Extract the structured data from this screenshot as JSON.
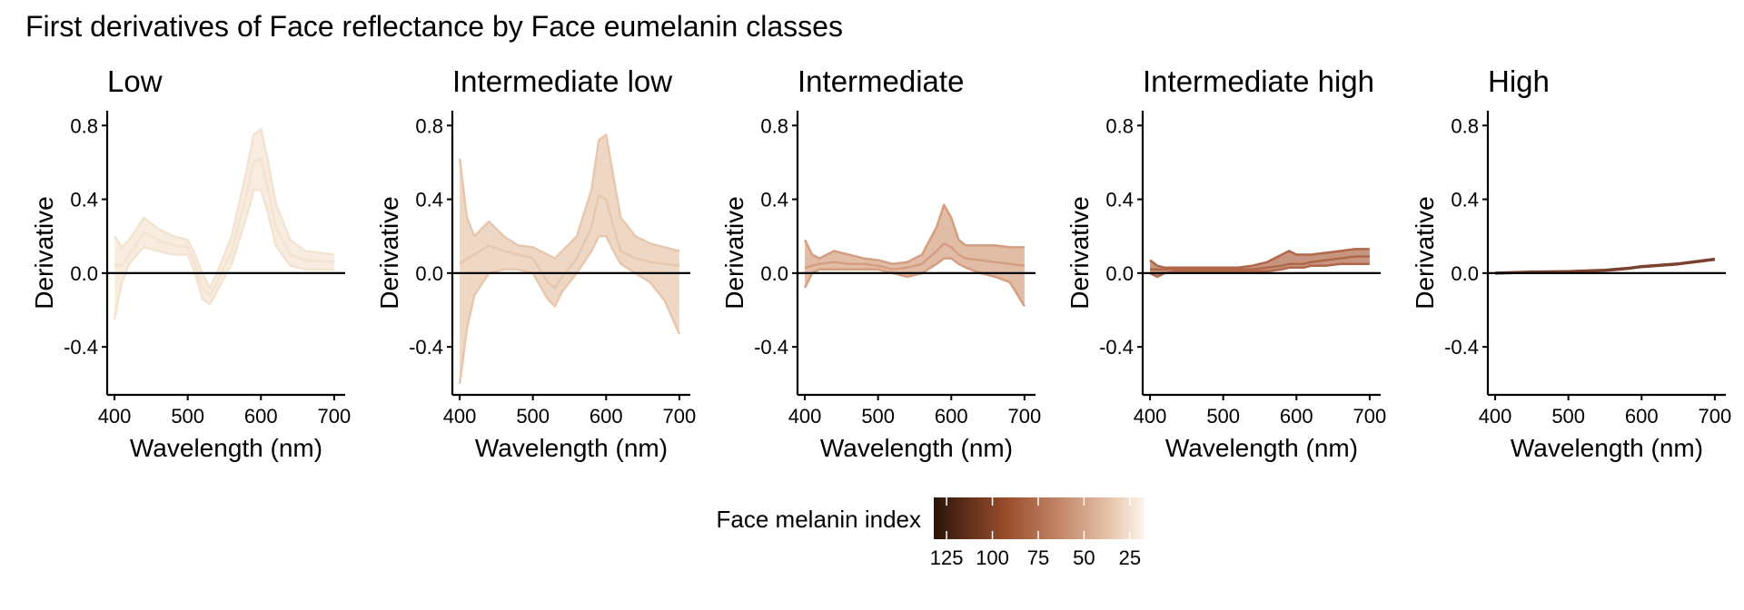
{
  "chart_data": {
    "type": "line",
    "title": "First derivatives of Face reflectance by Face eumelanin classes",
    "xlabel": "Wavelength (nm)",
    "ylabel": "Derivative",
    "xlim": [
      390,
      715
    ],
    "ylim": [
      -0.66,
      0.88
    ],
    "xticks": [
      400,
      500,
      600,
      700
    ],
    "yticks": [
      0.8,
      0.4,
      0.0,
      -0.4
    ],
    "ytick_labels": [
      "0.8",
      "0.4",
      "0.0",
      "-0.4"
    ],
    "hline": 0.0,
    "panels": [
      {
        "title": "Low",
        "color": "#f3e4d2",
        "series": [
          {
            "name": "upper",
            "x": [
              400,
              410,
              420,
              440,
              460,
              480,
              500,
              510,
              520,
              530,
              540,
              560,
              580,
              590,
              600,
              610,
              620,
              640,
              660,
              700
            ],
            "y": [
              0.2,
              0.14,
              0.18,
              0.3,
              0.24,
              0.2,
              0.18,
              0.1,
              0.0,
              -0.08,
              0.0,
              0.2,
              0.55,
              0.75,
              0.78,
              0.6,
              0.38,
              0.18,
              0.12,
              0.1
            ]
          },
          {
            "name": "mid",
            "x": [
              400,
              410,
              420,
              440,
              460,
              480,
              500,
              510,
              520,
              530,
              540,
              560,
              580,
              590,
              600,
              610,
              620,
              640,
              660,
              700
            ],
            "y": [
              0.05,
              0.04,
              0.1,
              0.22,
              0.18,
              0.15,
              0.14,
              0.05,
              -0.08,
              -0.12,
              -0.05,
              0.12,
              0.42,
              0.6,
              0.62,
              0.45,
              0.25,
              0.1,
              0.07,
              0.06
            ]
          },
          {
            "name": "lower",
            "x": [
              400,
              410,
              420,
              440,
              460,
              480,
              500,
              510,
              520,
              530,
              540,
              560,
              580,
              590,
              600,
              610,
              620,
              640,
              660,
              700
            ],
            "y": [
              -0.25,
              -0.05,
              0.05,
              0.14,
              0.12,
              0.1,
              0.1,
              0.0,
              -0.14,
              -0.17,
              -0.1,
              0.05,
              0.3,
              0.45,
              0.45,
              0.32,
              0.15,
              0.04,
              0.02,
              0.02
            ]
          }
        ]
      },
      {
        "title": "Intermediate low",
        "color": "#e7c7ad",
        "series": [
          {
            "name": "upper",
            "x": [
              400,
              410,
              420,
              440,
              460,
              480,
              500,
              520,
              530,
              540,
              560,
              580,
              590,
              600,
              610,
              620,
              640,
              660,
              680,
              700
            ],
            "y": [
              0.62,
              0.3,
              0.2,
              0.28,
              0.2,
              0.15,
              0.14,
              0.1,
              0.08,
              0.12,
              0.2,
              0.45,
              0.72,
              0.75,
              0.52,
              0.3,
              0.2,
              0.16,
              0.14,
              0.12
            ]
          },
          {
            "name": "mid",
            "x": [
              400,
              410,
              420,
              440,
              460,
              480,
              500,
              520,
              530,
              540,
              560,
              580,
              590,
              600,
              610,
              620,
              640,
              660,
              680,
              700
            ],
            "y": [
              0.05,
              0.08,
              0.1,
              0.15,
              0.12,
              0.1,
              0.08,
              -0.05,
              -0.08,
              -0.02,
              0.08,
              0.25,
              0.42,
              0.4,
              0.25,
              0.12,
              0.08,
              0.06,
              0.05,
              0.04
            ]
          },
          {
            "name": "lower",
            "x": [
              400,
              410,
              420,
              440,
              460,
              480,
              500,
              520,
              530,
              540,
              560,
              580,
              590,
              600,
              610,
              620,
              640,
              660,
              680,
              700
            ],
            "y": [
              -0.6,
              -0.3,
              -0.12,
              0.0,
              0.02,
              0.02,
              0.0,
              -0.14,
              -0.18,
              -0.1,
              0.0,
              0.12,
              0.2,
              0.2,
              0.12,
              0.05,
              0.0,
              -0.05,
              -0.15,
              -0.33
            ]
          }
        ]
      },
      {
        "title": "Intermediate",
        "color": "#d49f80",
        "series": [
          {
            "name": "upper",
            "x": [
              400,
              410,
              420,
              440,
              460,
              480,
              500,
              520,
              540,
              560,
              580,
              590,
              600,
              610,
              620,
              640,
              660,
              680,
              700
            ],
            "y": [
              0.18,
              0.1,
              0.08,
              0.12,
              0.1,
              0.08,
              0.07,
              0.05,
              0.06,
              0.1,
              0.25,
              0.37,
              0.3,
              0.18,
              0.15,
              0.15,
              0.15,
              0.14,
              0.14
            ]
          },
          {
            "name": "mid",
            "x": [
              400,
              410,
              420,
              440,
              460,
              480,
              500,
              520,
              540,
              560,
              580,
              590,
              600,
              610,
              620,
              640,
              660,
              680,
              700
            ],
            "y": [
              0.03,
              0.04,
              0.05,
              0.06,
              0.05,
              0.05,
              0.04,
              0.02,
              0.03,
              0.05,
              0.12,
              0.16,
              0.14,
              0.1,
              0.08,
              0.07,
              0.06,
              0.05,
              0.04
            ]
          },
          {
            "name": "lower",
            "x": [
              400,
              410,
              420,
              440,
              460,
              480,
              500,
              520,
              540,
              560,
              580,
              590,
              600,
              610,
              620,
              640,
              660,
              680,
              700
            ],
            "y": [
              -0.08,
              0.0,
              0.02,
              0.02,
              0.02,
              0.02,
              0.02,
              0.0,
              -0.02,
              0.0,
              0.05,
              0.08,
              0.08,
              0.05,
              0.03,
              0.0,
              -0.02,
              -0.05,
              -0.18
            ]
          }
        ]
      },
      {
        "title": "Intermediate high",
        "color": "#b0684a",
        "series": [
          {
            "name": "upper",
            "x": [
              400,
              410,
              420,
              440,
              460,
              480,
              500,
              520,
              540,
              560,
              580,
              590,
              600,
              610,
              620,
              640,
              660,
              680,
              700
            ],
            "y": [
              0.07,
              0.04,
              0.03,
              0.03,
              0.03,
              0.03,
              0.03,
              0.03,
              0.04,
              0.06,
              0.1,
              0.12,
              0.1,
              0.1,
              0.1,
              0.11,
              0.12,
              0.13,
              0.13
            ]
          },
          {
            "name": "mid",
            "x": [
              400,
              410,
              420,
              440,
              460,
              480,
              500,
              520,
              540,
              560,
              580,
              590,
              600,
              610,
              620,
              640,
              660,
              680,
              700
            ],
            "y": [
              0.02,
              0.02,
              0.02,
              0.02,
              0.02,
              0.02,
              0.02,
              0.02,
              0.02,
              0.03,
              0.04,
              0.05,
              0.05,
              0.05,
              0.06,
              0.07,
              0.08,
              0.09,
              0.09
            ]
          },
          {
            "name": "lower",
            "x": [
              400,
              410,
              420,
              440,
              460,
              480,
              500,
              520,
              540,
              560,
              580,
              590,
              600,
              610,
              620,
              640,
              660,
              680,
              700
            ],
            "y": [
              0.0,
              -0.02,
              0.0,
              0.01,
              0.01,
              0.01,
              0.01,
              0.01,
              0.01,
              0.01,
              0.02,
              0.03,
              0.03,
              0.03,
              0.04,
              0.04,
              0.05,
              0.05,
              0.05
            ]
          }
        ]
      },
      {
        "title": "High",
        "color": "#7a4030",
        "series": [
          {
            "name": "mean",
            "x": [
              400,
              450,
              500,
              550,
              580,
              600,
              650,
              700
            ],
            "y": [
              0.0,
              0.005,
              0.008,
              0.015,
              0.025,
              0.035,
              0.05,
              0.075
            ]
          }
        ]
      }
    ],
    "legend": {
      "title": "Face melanin index",
      "ticks": [
        125,
        100,
        75,
        50,
        25
      ],
      "range": [
        132,
        17
      ],
      "colors": [
        "#2b1509",
        "#9c4e2c",
        "#c2876a",
        "#e3c0a6",
        "#fcf4ea"
      ],
      "position": "bottom"
    }
  }
}
